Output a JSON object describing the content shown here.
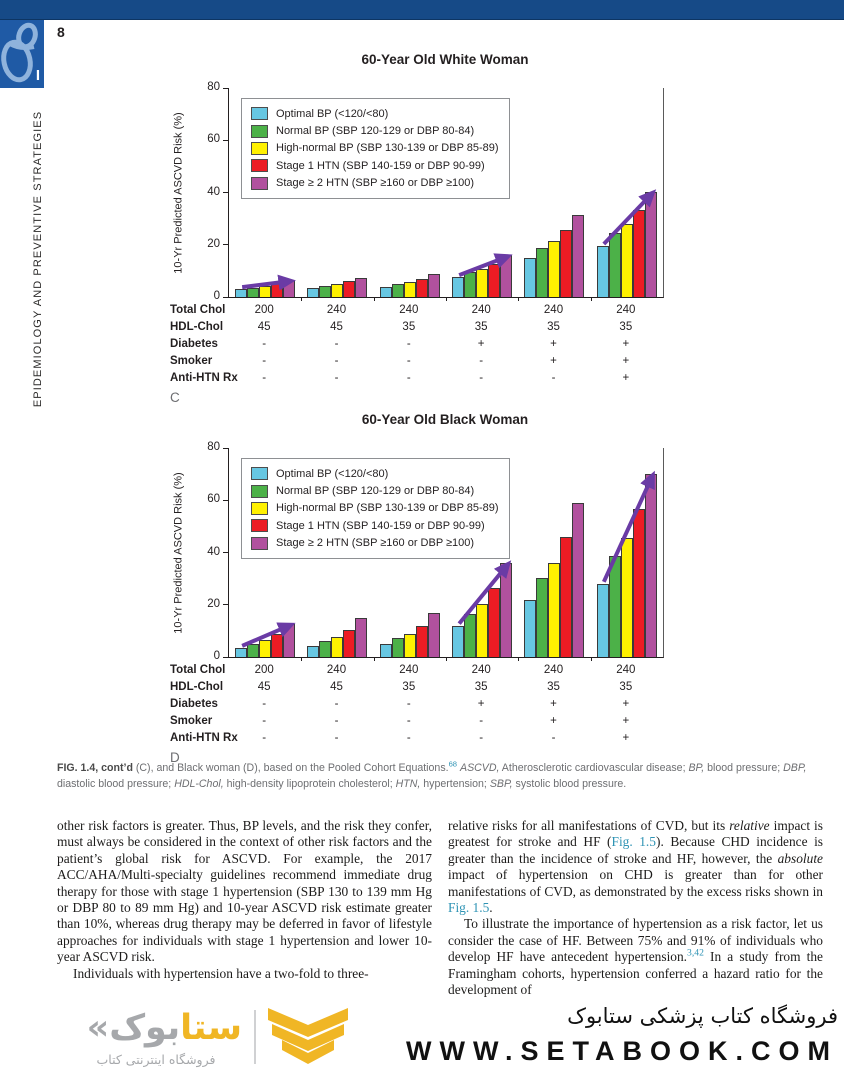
{
  "header": {
    "page_number": "8",
    "part_label": "I",
    "sidebar_text": "EPIDEMIOLOGY AND PREVENTIVE STRATEGIES"
  },
  "colors": {
    "topbar": "#164a87",
    "side_square": "#1f5aa5",
    "glyph": "#8fb3dc",
    "link_teal": "#2e93b4",
    "arrow_purple": "#6a3ba5",
    "logo_yellow": "#f0b625",
    "logo_gray": "#a6a8ab"
  },
  "chart_data": [
    {
      "type": "bar",
      "title": "60-Year Old White Woman",
      "panel_label": "C",
      "ylabel": "10-Yr Predicted ASCVD Risk (%)",
      "ylim": [
        0,
        80
      ],
      "yticks": [
        0,
        20,
        40,
        60,
        80
      ],
      "grid": false,
      "legend_position": "upper-left-inside",
      "series": [
        {
          "name": "Optimal BP (<120/<80)",
          "color": "#67c7e2",
          "values": [
            3.0,
            3.4,
            4.0,
            7.6,
            15.0,
            19.5
          ]
        },
        {
          "name": "Normal BP (SBP 120-129 or DBP 80-84)",
          "color": "#4cb148",
          "values": [
            3.6,
            4.3,
            5.0,
            9.4,
            18.8,
            24.5
          ]
        },
        {
          "name": "High-normal BP (SBP 130-139 or DBP 85-89)",
          "color": "#fff101",
          "values": [
            4.2,
            5.0,
            5.8,
            10.6,
            21.5,
            28.0
          ]
        },
        {
          "name": "Stage 1 HTN (SBP 140-159 or DBP 90-99)",
          "color": "#ec1c24",
          "values": [
            5.2,
            6.0,
            7.0,
            12.8,
            25.6,
            33.3
          ]
        },
        {
          "name": "Stage ≥ 2 HTN (SBP ≥160 or DBP ≥100)",
          "color": "#b1519e",
          "values": [
            6.5,
            7.4,
            9.0,
            16.0,
            31.5,
            40.3
          ]
        }
      ],
      "arrow_groups": [
        0,
        3,
        5
      ],
      "table": {
        "rows": [
          {
            "label": "Total Chol",
            "values": [
              "200",
              "240",
              "240",
              "240",
              "240",
              "240"
            ]
          },
          {
            "label": "HDL-Chol",
            "values": [
              "45",
              "45",
              "35",
              "35",
              "35",
              "35"
            ]
          },
          {
            "label": "Diabetes",
            "values": [
              "-",
              "-",
              "-",
              "+",
              "+",
              "+"
            ]
          },
          {
            "label": "Smoker",
            "values": [
              "-",
              "-",
              "-",
              "-",
              "+",
              "+"
            ]
          },
          {
            "label": "Anti-HTN Rx",
            "values": [
              "-",
              "-",
              "-",
              "-",
              "-",
              "+"
            ]
          }
        ]
      }
    },
    {
      "type": "bar",
      "title": "60-Year Old Black Woman",
      "panel_label": "D",
      "ylabel": "10-Yr Predicted ASCVD Risk (%)",
      "ylim": [
        0,
        80
      ],
      "yticks": [
        0,
        20,
        40,
        60,
        80
      ],
      "grid": false,
      "legend_position": "upper-left-inside",
      "series": [
        {
          "name": "Optimal BP (<120/<80)",
          "color": "#67c7e2",
          "values": [
            3.5,
            4.3,
            5.0,
            12.0,
            22.0,
            28.0
          ]
        },
        {
          "name": "Normal BP (SBP 120-129 or DBP 80-84)",
          "color": "#4cb148",
          "values": [
            5.0,
            6.2,
            7.4,
            16.5,
            30.3,
            38.5
          ]
        },
        {
          "name": "High-normal BP (SBP 130-139 or DBP 85-89)",
          "color": "#fff101",
          "values": [
            6.5,
            7.7,
            8.8,
            20.3,
            36.0,
            45.5
          ]
        },
        {
          "name": "Stage 1 HTN (SBP 140-159 or DBP 90-99)",
          "color": "#ec1c24",
          "values": [
            9.0,
            10.2,
            12.0,
            26.3,
            46.0,
            56.5
          ]
        },
        {
          "name": "Stage ≥ 2 HTN (SBP ≥160 or DBP ≥100)",
          "color": "#b1519e",
          "values": [
            12.7,
            14.8,
            16.8,
            36.0,
            59.0,
            70.0
          ]
        }
      ],
      "arrow_groups": [
        0,
        3,
        5
      ],
      "table": {
        "rows": [
          {
            "label": "Total Chol",
            "values": [
              "200",
              "240",
              "240",
              "240",
              "240",
              "240"
            ]
          },
          {
            "label": "HDL-Chol",
            "values": [
              "45",
              "45",
              "35",
              "35",
              "35",
              "35"
            ]
          },
          {
            "label": "Diabetes",
            "values": [
              "-",
              "-",
              "-",
              "+",
              "+",
              "+"
            ]
          },
          {
            "label": "Smoker",
            "values": [
              "-",
              "-",
              "-",
              "-",
              "+",
              "+"
            ]
          },
          {
            "label": "Anti-HTN Rx",
            "values": [
              "-",
              "-",
              "-",
              "-",
              "-",
              "+"
            ]
          }
        ]
      }
    }
  ],
  "caption": {
    "runs": [
      {
        "t": "FIG. 1.4, cont’d ",
        "s": "figbold"
      },
      {
        "t": "(C), and Black woman (D), based on the Pooled Cohort Equations.",
        "s": ""
      },
      {
        "t": "68",
        "s": "sup"
      },
      {
        "t": " ",
        "s": ""
      },
      {
        "t": "ASCVD,",
        "s": "i"
      },
      {
        "t": " Atherosclerotic cardiovascular disease; ",
        "s": ""
      },
      {
        "t": "BP,",
        "s": "i"
      },
      {
        "t": " blood pressure; ",
        "s": ""
      },
      {
        "t": "DBP,",
        "s": "i"
      },
      {
        "t": " diastolic blood pressure; ",
        "s": ""
      },
      {
        "t": "HDL-Chol,",
        "s": "i"
      },
      {
        "t": " high-density lipoprotein cholesterol; ",
        "s": ""
      },
      {
        "t": "HTN,",
        "s": "i"
      },
      {
        "t": " hypertension; ",
        "s": ""
      },
      {
        "t": "SBP,",
        "s": "i"
      },
      {
        "t": " systolic blood pressure.",
        "s": ""
      }
    ]
  },
  "body": {
    "left_column": [
      {
        "indent": false,
        "runs": [
          {
            "t": "other risk factors is greater. Thus, BP levels, and the risk they confer, must always be considered in the context of other risk factors and the patient’s global risk for ASCVD. For example, the 2017 ACC/AHA/Multi-specialty guidelines recommend immediate drug therapy for those with stage 1 hypertension (SBP 130 to 139 mm Hg or DBP 80 to 89 mm Hg) and 10-year ASCVD risk estimate greater than 10%, whereas drug therapy may be deferred in favor of lifestyle approaches for individuals with stage 1 hypertension and lower 10-year ASCVD risk.",
            "s": ""
          }
        ]
      },
      {
        "indent": true,
        "runs": [
          {
            "t": "Individuals with hypertension have a two-fold to three-",
            "s": ""
          }
        ]
      }
    ],
    "right_column": [
      {
        "indent": false,
        "runs": [
          {
            "t": "relative risks for all manifestations of CVD, but its ",
            "s": ""
          },
          {
            "t": "relative",
            "s": "i"
          },
          {
            "t": " impact is greatest for stroke and HF (",
            "s": ""
          },
          {
            "t": "Fig. 1.5",
            "s": "link"
          },
          {
            "t": "). Because CHD incidence is greater than the incidence of stroke and HF, however, the ",
            "s": ""
          },
          {
            "t": "absolute",
            "s": "i"
          },
          {
            "t": " impact of hypertension on CHD is greater than for other manifestations of CVD, as demonstrated by the excess risks shown in ",
            "s": ""
          },
          {
            "t": "Fig. 1.5",
            "s": "link"
          },
          {
            "t": ".",
            "s": ""
          }
        ]
      },
      {
        "indent": true,
        "runs": [
          {
            "t": "To illustrate the importance of hypertension as a risk factor, let us consider the case of HF. Between 75% and 91% of individuals who develop HF have antecedent hypertension.",
            "s": ""
          },
          {
            "t": "3,42",
            "s": "sup"
          },
          {
            "t": " In a study from the Framingham cohorts, hypertension conferred a hazard ratio for the development of",
            "s": ""
          }
        ]
      }
    ]
  },
  "footer": {
    "logo": {
      "wordmark_yellow": "ستا",
      "wordmark_gray": "بوک",
      "wordmark_guillemet": "«",
      "subtitle": "فروشگاه اینترنتی کتاب"
    },
    "store_line": "فروشگاه کتاب پزشکی ستابوک",
    "url_runs": [
      {
        "t": "WWW.",
        "s": ""
      },
      {
        "t": "S",
        "s": "yellow"
      },
      {
        "t": "ETA",
        "s": ""
      },
      {
        "t": "B",
        "s": "yellow"
      },
      {
        "t": "OOK.COM",
        "s": ""
      }
    ]
  }
}
